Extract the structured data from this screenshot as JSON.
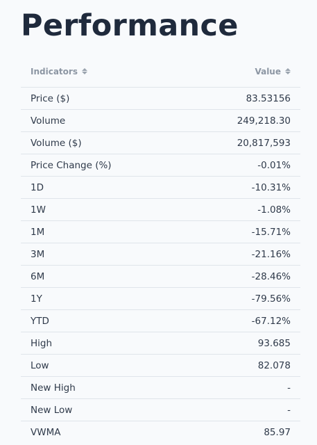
{
  "title": "Performance",
  "table": {
    "headers": {
      "indicators": "Indicators",
      "value": "Value"
    },
    "rows": [
      {
        "label": "Price ($)",
        "value": "83.53156"
      },
      {
        "label": "Volume",
        "value": "249,218.30"
      },
      {
        "label": "Volume ($)",
        "value": "20,817,593"
      },
      {
        "label": "Price Change (%)",
        "value": "-0.01%"
      },
      {
        "label": "1D",
        "value": "-10.31%"
      },
      {
        "label": "1W",
        "value": "-1.08%"
      },
      {
        "label": "1M",
        "value": "-15.71%"
      },
      {
        "label": "3M",
        "value": "-21.16%"
      },
      {
        "label": "6M",
        "value": "-28.46%"
      },
      {
        "label": "1Y",
        "value": "-79.56%"
      },
      {
        "label": "YTD",
        "value": "-67.12%"
      },
      {
        "label": "High",
        "value": "93.685"
      },
      {
        "label": "Low",
        "value": "82.078"
      },
      {
        "label": "New High",
        "value": "-"
      },
      {
        "label": "New Low",
        "value": "-"
      },
      {
        "label": "VWMA",
        "value": "85.97"
      }
    ]
  },
  "icons": {
    "sort": "sort-icon"
  },
  "colors": {
    "background": "#f8fafc",
    "title": "#1f2a3c",
    "header_text": "#8c96a3",
    "divider": "#dfe4ea"
  }
}
